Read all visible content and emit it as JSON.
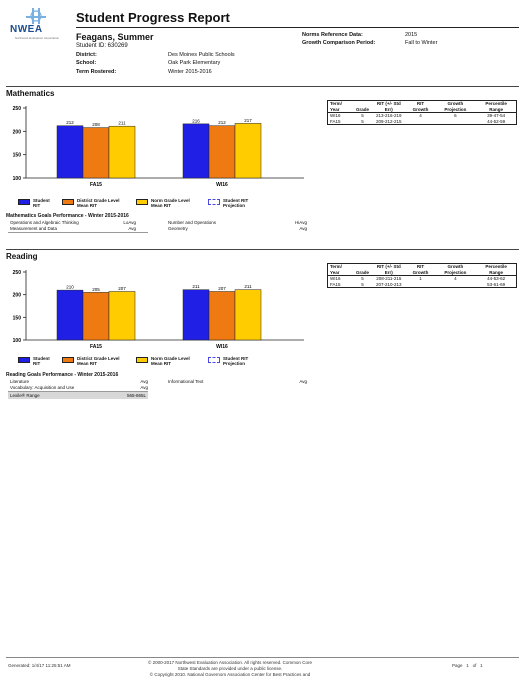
{
  "header": {
    "logo_text": "NWEA",
    "logo_subtext": "Northwest Evaluation Association",
    "title": "Student Progress Report",
    "student_name": "Feagans, Summer",
    "student_id": "Student ID: 630269",
    "district_label": "District:",
    "district": "Des Moines Public Schools",
    "school_label": "School:",
    "school": "Oak Park Elementary",
    "term_label": "Term Rostered:",
    "term": "Winter 2015-2016",
    "norms_label": "Norms Reference Data:",
    "norms": "2015",
    "growth_label": "Growth Comparison Period:",
    "growth": "Fall to Winter"
  },
  "legend": {
    "student": "Student RIT",
    "district": "District Grade Level Mean RIT",
    "norm": "Norm Grade Level Mean RIT",
    "projection": "Student RIT Projection"
  },
  "colors": {
    "student": "#1f1fe6",
    "district": "#f07a12",
    "norm": "#ffcc00"
  },
  "table_headers": [
    "Term/ Year",
    "Grade",
    "RIT (+/- Std Err)",
    "RIT Growth",
    "Growth Projection",
    "Percentile Range"
  ],
  "math": {
    "title": "Mathematics",
    "rows": [
      [
        "WI16",
        "5",
        "213-216-219",
        "4",
        "6",
        "39-47-54"
      ],
      [
        "FA15",
        "5",
        "209-212-215",
        "",
        "",
        "44-52-59"
      ]
    ],
    "goals_title": "Mathematics Goals Performance - Winter 2015-2016",
    "goals": [
      [
        "Operations and Algebraic Thinking",
        "LoAvg",
        "Number and Operations",
        "HiAvg"
      ],
      [
        "Measurement and Data",
        "Avg",
        "Geometry",
        "Avg"
      ]
    ]
  },
  "reading": {
    "title": "Reading",
    "rows": [
      [
        "WI16",
        "5",
        "208-211-215",
        "1",
        "4",
        "44-53-62"
      ],
      [
        "FA15",
        "5",
        "207-210-213",
        "",
        "",
        "53-61-69"
      ]
    ],
    "goals_title": "Reading Goals Performance - Winter 2015-2016",
    "goals": [
      [
        "Literature",
        "Avg",
        "Informational Text",
        "Avg"
      ],
      [
        "Vocabulary: Acquisition and Use",
        "Avg",
        "",
        ""
      ]
    ],
    "lexile_label": "Lexile® Range",
    "lexile_value": "565-865L"
  },
  "chart_data": [
    {
      "type": "bar",
      "title": "Mathematics",
      "categories": [
        "FA15",
        "WI16"
      ],
      "series": [
        {
          "name": "Student RIT",
          "values": [
            212,
            216
          ]
        },
        {
          "name": "District Grade Level Mean RIT",
          "values": [
            208,
            212
          ]
        },
        {
          "name": "Norm Grade Level Mean RIT",
          "values": [
            211,
            217
          ]
        }
      ],
      "ylim": [
        100,
        250
      ],
      "yticks": [
        100,
        150,
        200,
        250
      ]
    },
    {
      "type": "bar",
      "title": "Reading",
      "categories": [
        "FA15",
        "WI16"
      ],
      "series": [
        {
          "name": "Student RIT",
          "values": [
            210,
            211
          ]
        },
        {
          "name": "District Grade Level Mean RIT",
          "values": [
            205,
            207
          ]
        },
        {
          "name": "Norm Grade Level Mean RIT",
          "values": [
            207,
            211
          ]
        }
      ],
      "ylim": [
        100,
        250
      ],
      "yticks": [
        100,
        150,
        200,
        250
      ]
    }
  ],
  "footer": {
    "generated": "Generated: 1/4/17 11:25:51 AM",
    "copyright_1": "© 2000-2017 Northwest Evaluation Association. All rights reserved. Common Core",
    "copyright_2": "State Standards are provided under a public license.",
    "copyright_3": "© Copyright 2010. National Governors Association Center for Best Practices and",
    "page_label": "Page",
    "page_current": "1",
    "page_of": "of",
    "page_total": "1"
  }
}
